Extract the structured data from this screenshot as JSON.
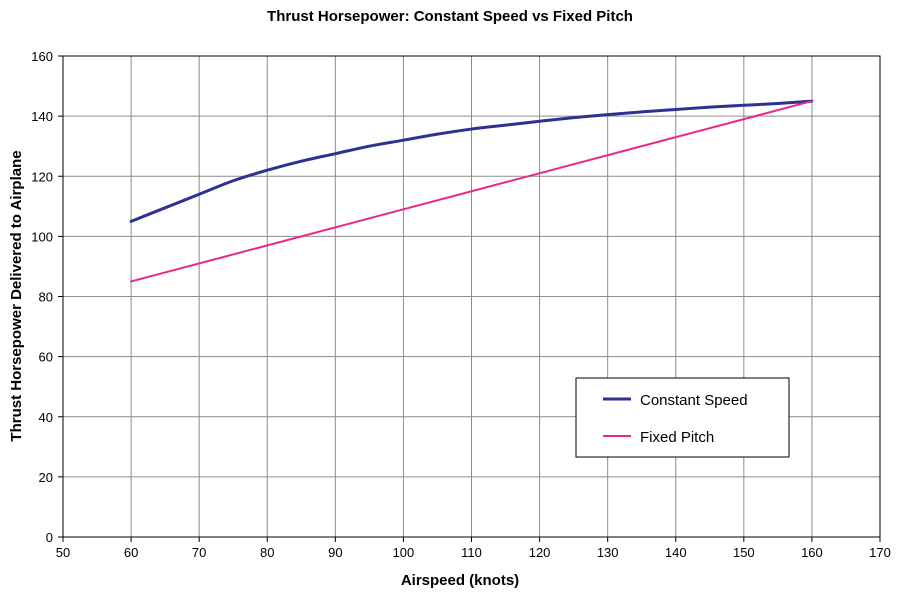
{
  "chart_data": {
    "type": "line",
    "title": "Thrust Horsepower: Constant Speed vs Fixed Pitch",
    "xlabel": "Airspeed (knots)",
    "ylabel": "Thrust Horsepower Delivered to Airplane",
    "xlim": [
      50,
      170
    ],
    "ylim": [
      0,
      160
    ],
    "xticks": [
      50,
      60,
      70,
      80,
      90,
      100,
      110,
      120,
      130,
      140,
      150,
      160,
      170
    ],
    "yticks": [
      0,
      20,
      40,
      60,
      80,
      100,
      120,
      140,
      160
    ],
    "grid": true,
    "legend_position": "bottom-right",
    "series": [
      {
        "name": "Constant Speed",
        "color": "#2e3192",
        "x": [
          60,
          65,
          70,
          75,
          80,
          85,
          90,
          95,
          100,
          105,
          110,
          115,
          120,
          125,
          130,
          135,
          140,
          145,
          150,
          155,
          160
        ],
        "y": [
          105,
          109.5,
          114,
          118.5,
          122,
          125,
          127.5,
          130,
          132,
          134,
          135.7,
          137,
          138.3,
          139.5,
          140.5,
          141.4,
          142.2,
          143,
          143.6,
          144.2,
          145
        ]
      },
      {
        "name": "Fixed Pitch",
        "color": "#e8298a",
        "x": [
          60,
          160
        ],
        "y": [
          85,
          145
        ]
      }
    ]
  }
}
